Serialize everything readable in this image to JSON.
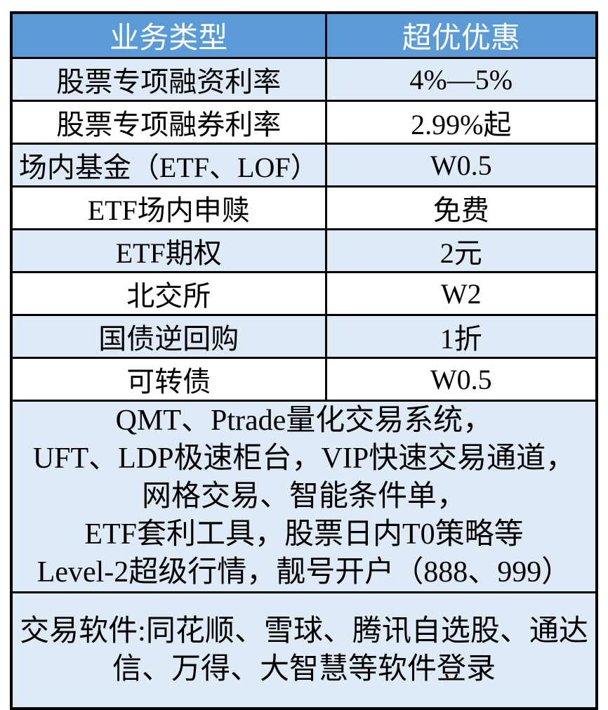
{
  "colors": {
    "header_bg": "#5B9BD5",
    "header_text": "#FFFFFF",
    "row_alt_bg": "#DEEAF6",
    "row_bg": "#FFFFFF",
    "border": "#000000",
    "body_text": "#000000"
  },
  "table": {
    "headers": [
      "业务类型",
      "超优优惠"
    ],
    "rows": [
      {
        "type": "股票专项融资利率",
        "offer": "4%—5%"
      },
      {
        "type": "股票专项融券利率",
        "offer": "2.99%起"
      },
      {
        "type": "场内基金（ETF、LOF）",
        "offer": "W0.5"
      },
      {
        "type": "ETF场内申赎",
        "offer": "免费"
      },
      {
        "type": "ETF期权",
        "offer": "2元"
      },
      {
        "type": "北交所",
        "offer": "W2"
      },
      {
        "type": "国债逆回购",
        "offer": "1折"
      },
      {
        "type": "可转债",
        "offer": "W0.5"
      }
    ],
    "features_lines": [
      "QMT、Ptrade量化交易系统，",
      "UFT、LDP极速柜台，VIP快速交易通道，",
      "网格交易、智能条件单，",
      "ETF套利工具，股票日内T0策略等",
      "Level-2超级行情，靓号开户（888、999）"
    ],
    "software_lines": [
      "交易软件:同花顺、雪球、腾讯自选股、通达",
      "信、万得、大智慧等软件登录"
    ]
  }
}
